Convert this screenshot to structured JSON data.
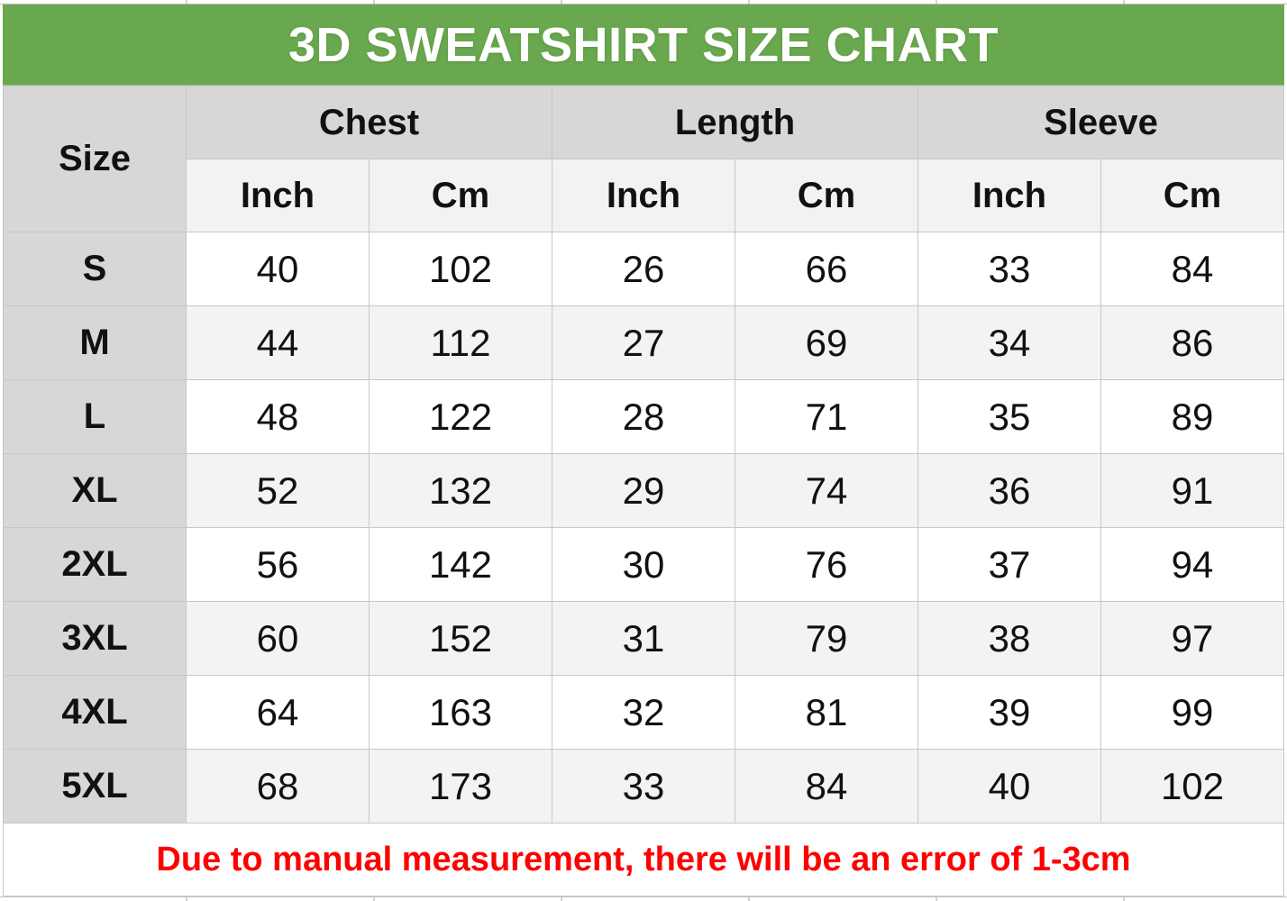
{
  "title": "3D SWEATSHIRT SIZE CHART",
  "colors": {
    "title_bar_green": "#6aa84f",
    "title_text": "#ffffff",
    "header_gray": "#d7d7d7",
    "subheader_gray": "#f2f2f2",
    "stripe_gray": "#f3f3f3",
    "note_red": "#fe0000"
  },
  "table": {
    "size_header": "Size",
    "group_headers": [
      "Chest",
      "Length",
      "Sleeve"
    ],
    "unit_headers": [
      "Inch",
      "Cm",
      "Inch",
      "Cm",
      "Inch",
      "Cm"
    ],
    "rows": [
      {
        "size": "S",
        "values": [
          40,
          102,
          26,
          66,
          33,
          84
        ]
      },
      {
        "size": "M",
        "values": [
          44,
          112,
          27,
          69,
          34,
          86
        ]
      },
      {
        "size": "L",
        "values": [
          48,
          122,
          28,
          71,
          35,
          89
        ]
      },
      {
        "size": "XL",
        "values": [
          52,
          132,
          29,
          74,
          36,
          91
        ]
      },
      {
        "size": "2XL",
        "values": [
          56,
          142,
          30,
          76,
          37,
          94
        ]
      },
      {
        "size": "3XL",
        "values": [
          60,
          152,
          31,
          79,
          38,
          97
        ]
      },
      {
        "size": "4XL",
        "values": [
          64,
          163,
          32,
          81,
          39,
          99
        ]
      },
      {
        "size": "5XL",
        "values": [
          68,
          173,
          33,
          84,
          40,
          102
        ]
      }
    ]
  },
  "note": "Due to manual measurement, there will be an error of 1-3cm",
  "chart_data": {
    "type": "table",
    "title": "3D SWEATSHIRT SIZE CHART",
    "columns": [
      "Size",
      "Chest Inch",
      "Chest Cm",
      "Length Inch",
      "Length Cm",
      "Sleeve Inch",
      "Sleeve Cm"
    ],
    "rows": [
      [
        "S",
        40,
        102,
        26,
        66,
        33,
        84
      ],
      [
        "M",
        44,
        112,
        27,
        69,
        34,
        86
      ],
      [
        "L",
        48,
        122,
        28,
        71,
        35,
        89
      ],
      [
        "XL",
        52,
        132,
        29,
        74,
        36,
        91
      ],
      [
        "2XL",
        56,
        142,
        30,
        76,
        37,
        94
      ],
      [
        "3XL",
        60,
        152,
        31,
        79,
        38,
        97
      ],
      [
        "4XL",
        64,
        163,
        32,
        81,
        39,
        99
      ],
      [
        "5XL",
        68,
        173,
        33,
        84,
        40,
        102
      ]
    ],
    "note": "Due to manual measurement, there will be an error of 1-3cm",
    "layout_hints": {
      "striped_rows": true,
      "grid": true,
      "header_levels": 2
    }
  }
}
